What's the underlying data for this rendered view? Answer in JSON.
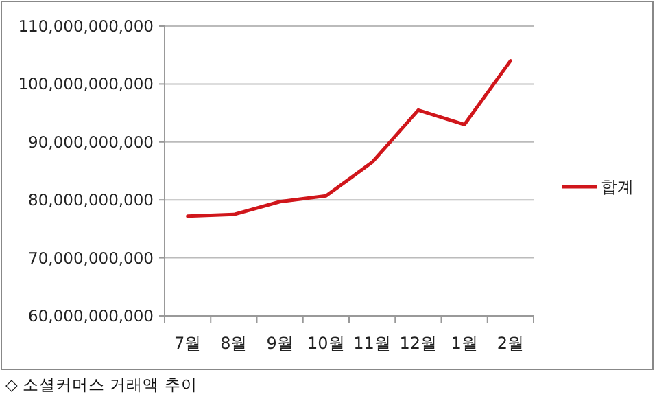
{
  "chart_data": {
    "type": "line",
    "categories": [
      "7월",
      "8월",
      "9월",
      "10월",
      "11월",
      "12월",
      "1월",
      "2월"
    ],
    "series": [
      {
        "name": "합계",
        "color": "#d0161b",
        "values": [
          77200000000,
          77500000000,
          79700000000,
          80700000000,
          86500000000,
          95500000000,
          93000000000,
          104000000000
        ]
      }
    ],
    "ylim": [
      60000000000,
      110000000000
    ],
    "yticks": [
      {
        "value": 60000000000,
        "label": "60,000,000,000"
      },
      {
        "value": 70000000000,
        "label": "70,000,000,000"
      },
      {
        "value": 80000000000,
        "label": "80,000,000,000"
      },
      {
        "value": 90000000000,
        "label": "90,000,000,000"
      },
      {
        "value": 100000000000,
        "label": "100,000,000,000"
      },
      {
        "value": 110000000000,
        "label": "110,000,000,000"
      }
    ],
    "grid": "y",
    "legend": "right",
    "marker": "none",
    "line_style": "solid",
    "annotations": [
      "◇ 소셜커머스 거래액 추이"
    ]
  }
}
